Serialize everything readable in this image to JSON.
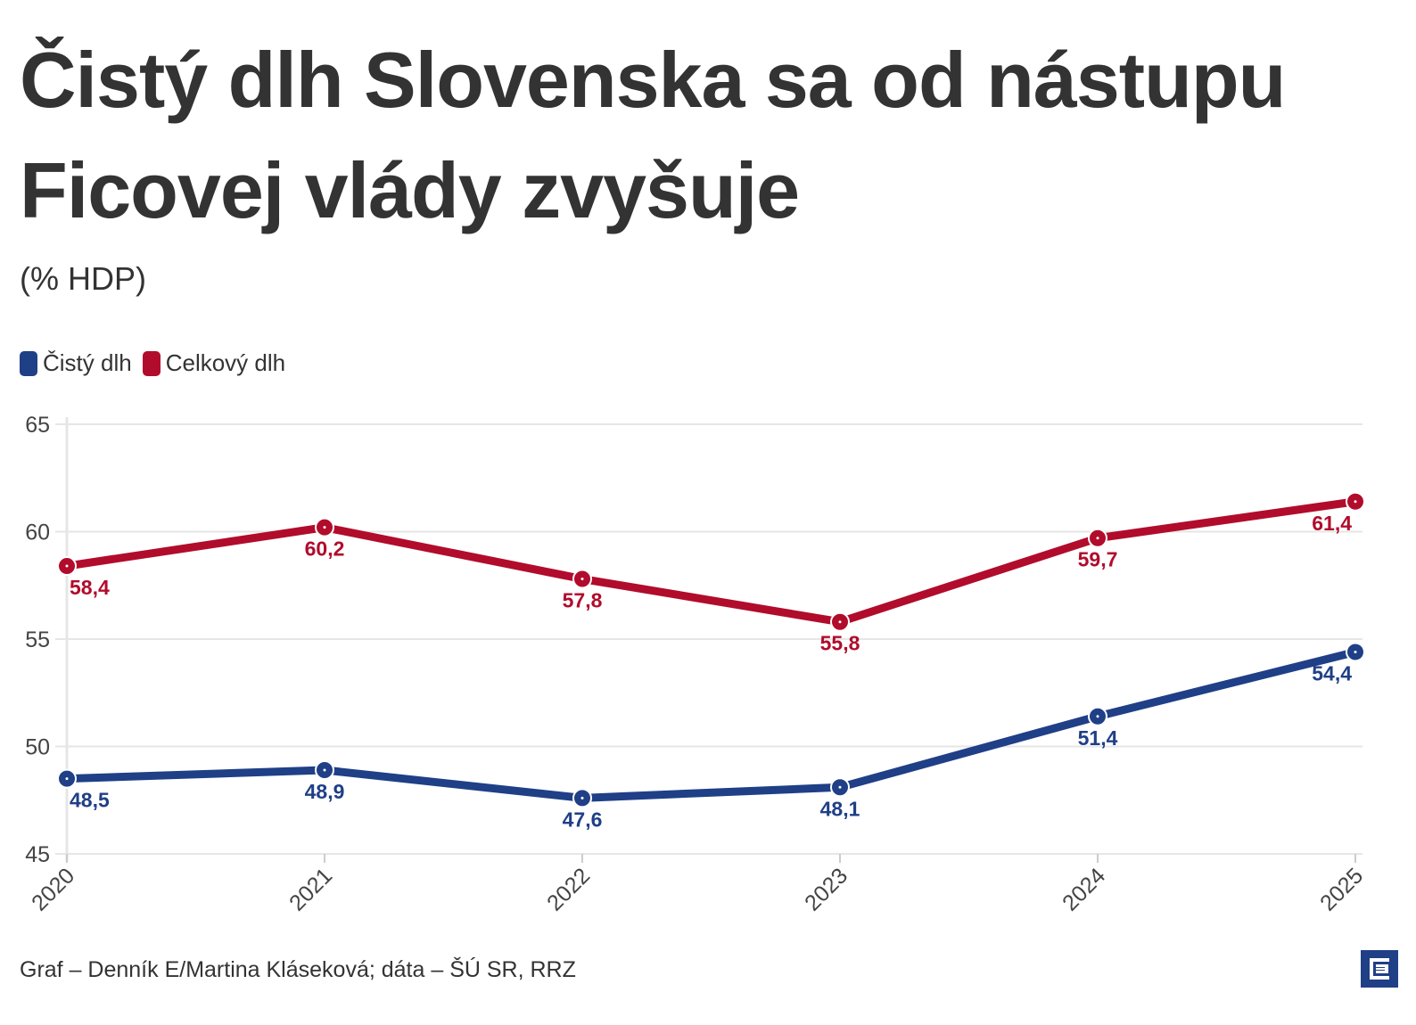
{
  "title": "Čistý dlh Slovenska sa od nástupu Ficovej vlády zvyšuje",
  "subtitle": "(% HDP)",
  "footer": "Graf – Denník E/Martina Kláseková; dáta – ŠÚ SR, RRZ",
  "logo_text": "E",
  "chart_data": {
    "type": "line",
    "title": "Čistý dlh Slovenska sa od nástupu Ficovej vlády zvyšuje",
    "ylabel": "(% HDP)",
    "x": [
      "2020",
      "2021",
      "2022",
      "2023",
      "2024",
      "2025"
    ],
    "ylim": [
      45,
      65
    ],
    "yticks": [
      "45",
      "50",
      "55",
      "60",
      "65"
    ],
    "grid": true,
    "legend": "top-left",
    "series": [
      {
        "name": "Čistý dlh",
        "color": "#1f3f87",
        "values": [
          48.5,
          48.9,
          47.6,
          48.1,
          51.4,
          54.4
        ],
        "labels": [
          "48,5",
          "48,9",
          "47,6",
          "48,1",
          "51,4",
          "54,4"
        ]
      },
      {
        "name": "Celkový dlh",
        "color": "#b10c2c",
        "values": [
          58.4,
          60.2,
          57.8,
          55.8,
          59.7,
          61.4
        ],
        "labels": [
          "58,4",
          "60,2",
          "57,8",
          "55,8",
          "59,7",
          "61,4"
        ]
      }
    ]
  }
}
